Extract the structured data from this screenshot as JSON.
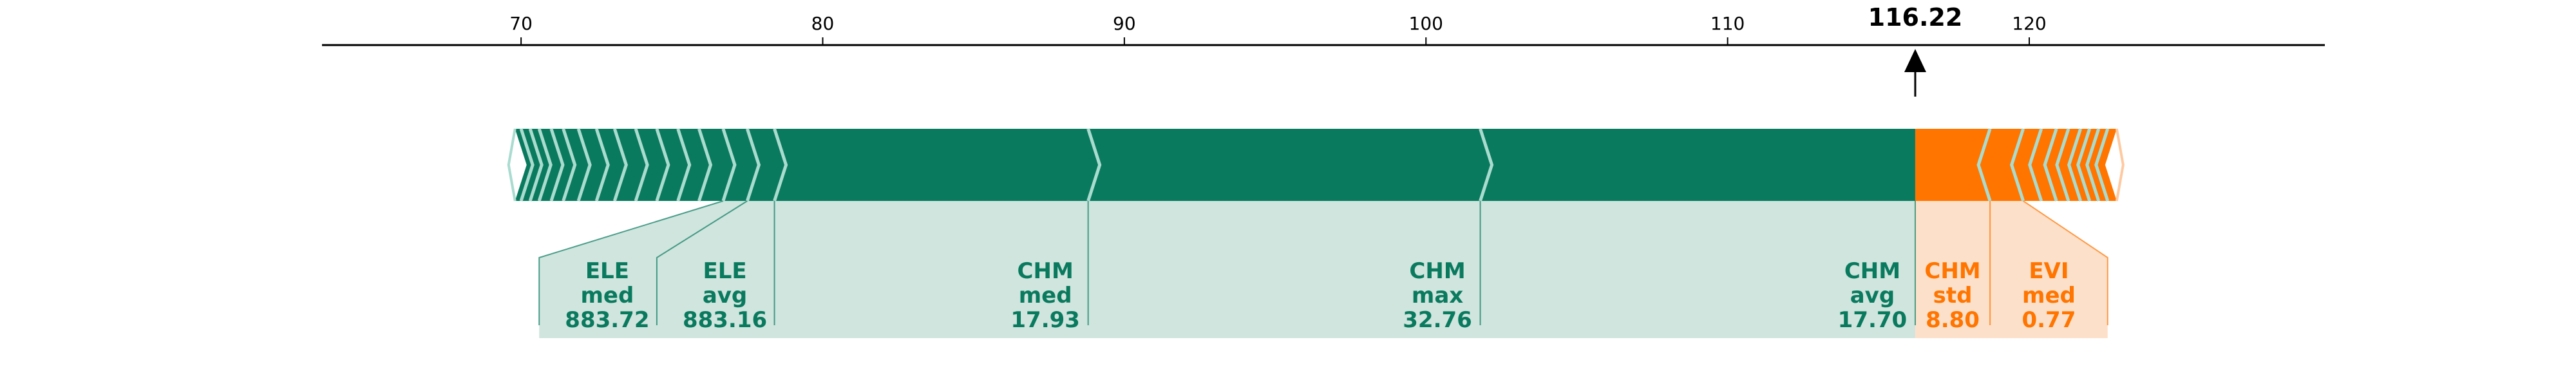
{
  "chart_data": {
    "type": "force_plot",
    "output_value": "116.22",
    "output_number": 116.22,
    "axis": {
      "xlim": [
        63.4,
        129.8
      ],
      "ticks": [
        70,
        80,
        90,
        100,
        110,
        120
      ],
      "tick_labels": [
        "70",
        "80",
        "90",
        "100",
        "110",
        "120"
      ]
    },
    "colors": {
      "positive": "#0a7a5e",
      "positive_light": "#cfe5de",
      "negative": "#ff7500",
      "negative_light": "#fde0c9",
      "chevron": "#a9dccf"
    },
    "positive_features": [
      {
        "lines": [
          "CHM",
          "avg",
          "17.70"
        ],
        "label": "CHM avg 17.70",
        "start": 116.22,
        "end": 101.8
      },
      {
        "lines": [
          "CHM",
          "max",
          "32.76"
        ],
        "label": "CHM max 32.76",
        "start": 101.8,
        "end": 88.8
      },
      {
        "lines": [
          "CHM",
          "med",
          "17.93"
        ],
        "label": "CHM med 17.93",
        "start": 88.8,
        "end": 78.4
      },
      {
        "lines": [
          "ELE",
          "avg",
          "883.16"
        ],
        "label": "ELE avg 883.16",
        "start": 78.4,
        "end": 77.5
      },
      {
        "lines": [
          "ELE",
          "med",
          "883.72"
        ],
        "label": "ELE med 883.72",
        "start": 77.5,
        "end": 76.7
      },
      {
        "start": 76.7,
        "end": 75.9
      },
      {
        "start": 75.9,
        "end": 75.2
      },
      {
        "start": 75.2,
        "end": 74.5
      },
      {
        "start": 74.5,
        "end": 73.8
      },
      {
        "start": 73.8,
        "end": 73.1
      },
      {
        "start": 73.1,
        "end": 72.5
      },
      {
        "start": 72.5,
        "end": 71.9
      },
      {
        "start": 71.9,
        "end": 71.4
      },
      {
        "start": 71.4,
        "end": 71.0
      },
      {
        "start": 71.0,
        "end": 70.6
      },
      {
        "start": 70.6,
        "end": 70.3
      },
      {
        "start": 70.3,
        "end": 70.0
      },
      {
        "start": 70.0,
        "end": 69.8
      }
    ],
    "negative_features": [
      {
        "lines": [
          "CHM",
          "std",
          "8.80"
        ],
        "label": "CHM std 8.80",
        "start": 116.22,
        "end": 118.7
      },
      {
        "lines": [
          "EVI",
          "med",
          "0.77"
        ],
        "label": "EVI med 0.77",
        "start": 118.7,
        "end": 119.8
      },
      {
        "start": 119.8,
        "end": 120.4
      },
      {
        "start": 120.4,
        "end": 120.9
      },
      {
        "start": 120.9,
        "end": 121.3
      },
      {
        "start": 121.3,
        "end": 121.7
      },
      {
        "start": 121.7,
        "end": 122.0
      },
      {
        "start": 122.0,
        "end": 122.3
      },
      {
        "start": 122.3,
        "end": 122.6
      },
      {
        "start": 122.6,
        "end": 122.9
      }
    ]
  }
}
